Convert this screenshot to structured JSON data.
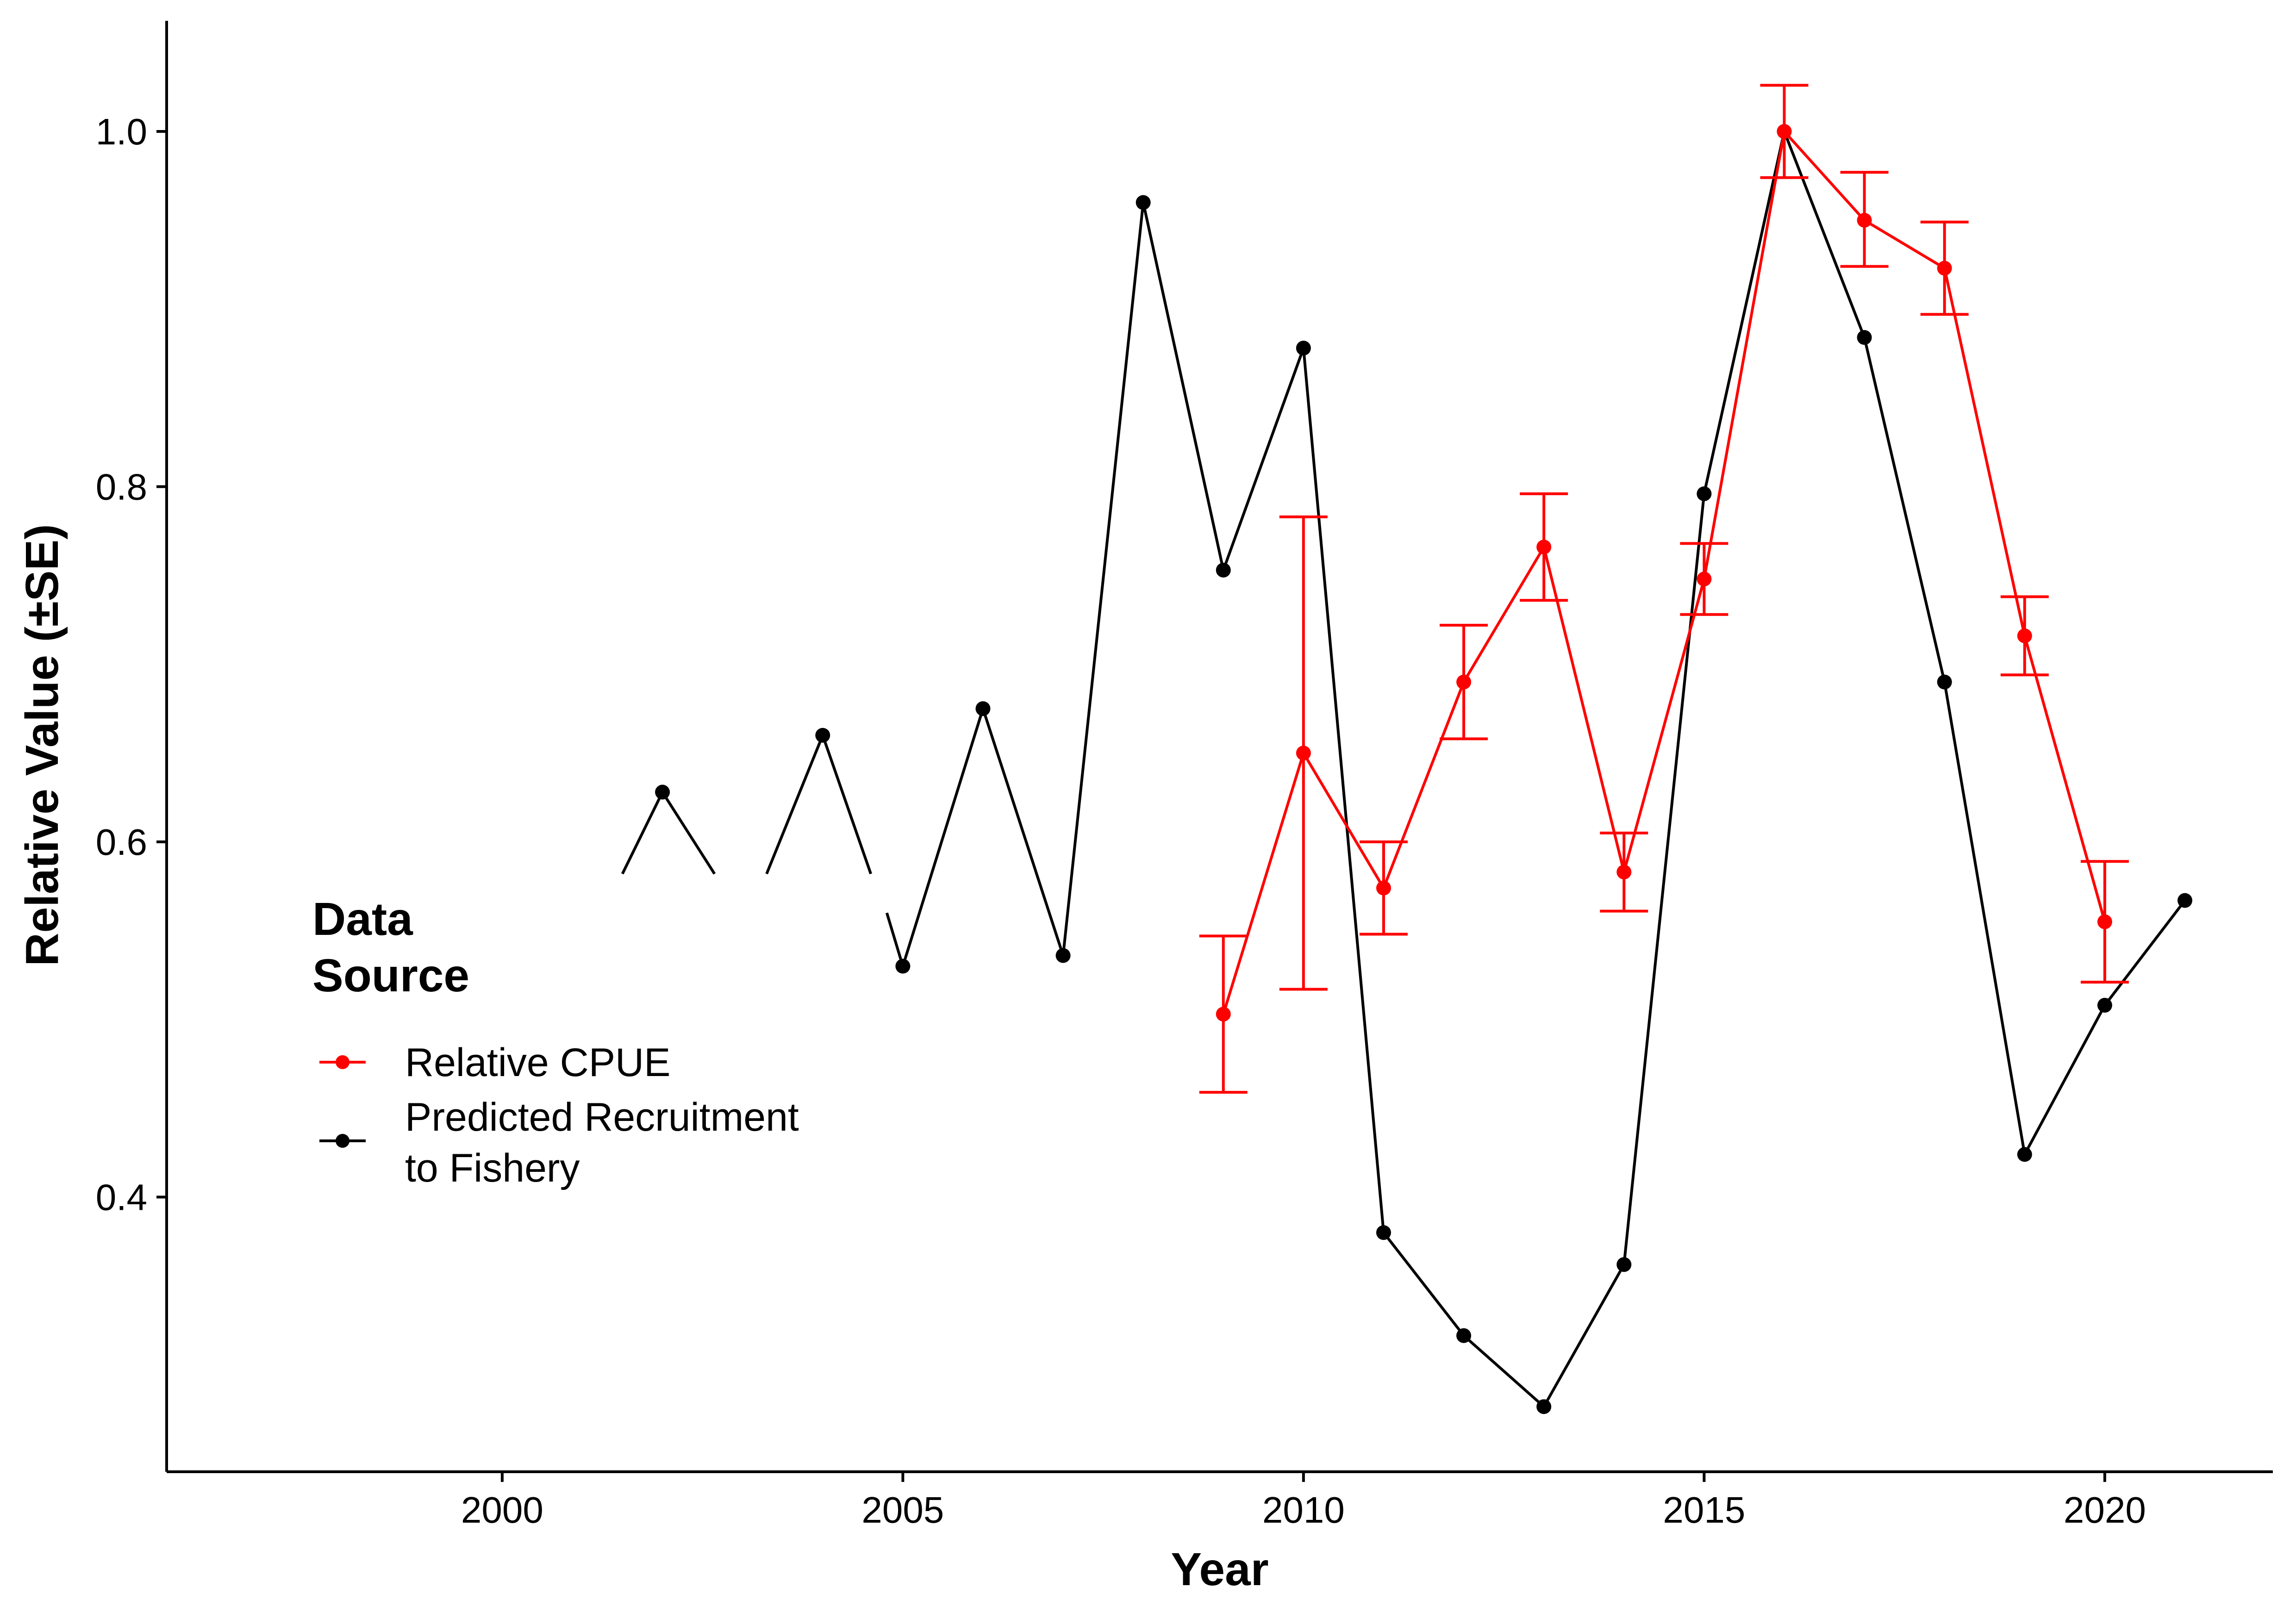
{
  "chart_data": {
    "type": "line",
    "xlabel": "Year",
    "ylabel": "Relative Value (±SE)",
    "xlim": [
      1995.8,
      2022.2
    ],
    "ylim": [
      0.245,
      1.062
    ],
    "x_ticks": [
      2000,
      2005,
      2010,
      2015,
      2020
    ],
    "y_ticks": [
      0.4,
      0.6,
      0.8,
      1.0
    ],
    "x_tick_labels": [
      "2000",
      "2005",
      "2010",
      "2015",
      "2020"
    ],
    "y_tick_labels": [
      "0.4",
      "0.6",
      "0.8",
      "1.0"
    ],
    "grid": false,
    "legend": {
      "title_lines": [
        "Data",
        "Source"
      ],
      "placement": "left",
      "entries": [
        {
          "label_lines": [
            "Relative CPUE"
          ],
          "color": "#ff0000"
        },
        {
          "label_lines": [
            "Predicted Recruitment",
            "to Fishery"
          ],
          "color": "#000000"
        }
      ]
    },
    "series": [
      {
        "name": "Predicted Recruitment to Fishery",
        "color": "#000000",
        "error_bars": false,
        "points": [
          {
            "x": 2002,
            "y": 0.628
          },
          {
            "x": 2004,
            "y": 0.66
          },
          {
            "x": 2005,
            "y": 0.53
          },
          {
            "x": 2006,
            "y": 0.675
          },
          {
            "x": 2007,
            "y": 0.536
          },
          {
            "x": 2008,
            "y": 0.96
          },
          {
            "x": 2009,
            "y": 0.753
          },
          {
            "x": 2010,
            "y": 0.878
          },
          {
            "x": 2011,
            "y": 0.38
          },
          {
            "x": 2012,
            "y": 0.322
          },
          {
            "x": 2013,
            "y": 0.282
          },
          {
            "x": 2014,
            "y": 0.362
          },
          {
            "x": 2015,
            "y": 0.796
          },
          {
            "x": 2016,
            "y": 1.0
          },
          {
            "x": 2017,
            "y": 0.884
          },
          {
            "x": 2018,
            "y": 0.69
          },
          {
            "x": 2019,
            "y": 0.424
          },
          {
            "x": 2020,
            "y": 0.508
          },
          {
            "x": 2021,
            "y": 0.567
          }
        ],
        "line_segments": [
          [
            [
              2001.5,
              0.582
            ],
            [
              2002,
              0.628
            ],
            [
              2002.65,
              0.582
            ]
          ],
          [
            [
              2003.3,
              0.582
            ],
            [
              2004,
              0.66
            ],
            [
              2004.6,
              0.582
            ]
          ],
          [
            [
              2004.8,
              0.56
            ],
            [
              2005,
              0.53
            ],
            [
              2006,
              0.675
            ],
            [
              2007,
              0.536
            ],
            [
              2008,
              0.96
            ],
            [
              2009,
              0.753
            ],
            [
              2010,
              0.878
            ],
            [
              2011,
              0.38
            ],
            [
              2012,
              0.322
            ],
            [
              2013,
              0.282
            ],
            [
              2014,
              0.362
            ],
            [
              2015,
              0.796
            ],
            [
              2016,
              1.0
            ],
            [
              2017,
              0.884
            ],
            [
              2018,
              0.69
            ],
            [
              2019,
              0.424
            ],
            [
              2020,
              0.508
            ],
            [
              2021,
              0.567
            ]
          ]
        ]
      },
      {
        "name": "Relative CPUE",
        "color": "#ff0000",
        "error_bars": true,
        "points": [
          {
            "x": 2009,
            "y": 0.503,
            "lo": 0.459,
            "hi": 0.547
          },
          {
            "x": 2010,
            "y": 0.65,
            "lo": 0.517,
            "hi": 0.783
          },
          {
            "x": 2011,
            "y": 0.574,
            "lo": 0.548,
            "hi": 0.6
          },
          {
            "x": 2012,
            "y": 0.69,
            "lo": 0.658,
            "hi": 0.722
          },
          {
            "x": 2013,
            "y": 0.766,
            "lo": 0.736,
            "hi": 0.796
          },
          {
            "x": 2014,
            "y": 0.583,
            "lo": 0.561,
            "hi": 0.605
          },
          {
            "x": 2015,
            "y": 0.748,
            "lo": 0.728,
            "hi": 0.768
          },
          {
            "x": 2016,
            "y": 1.0,
            "lo": 0.974,
            "hi": 1.026
          },
          {
            "x": 2017,
            "y": 0.95,
            "lo": 0.924,
            "hi": 0.977
          },
          {
            "x": 2018,
            "y": 0.923,
            "lo": 0.897,
            "hi": 0.949
          },
          {
            "x": 2019,
            "y": 0.716,
            "lo": 0.694,
            "hi": 0.738
          },
          {
            "x": 2020,
            "y": 0.555,
            "lo": 0.521,
            "hi": 0.589
          }
        ]
      }
    ]
  }
}
